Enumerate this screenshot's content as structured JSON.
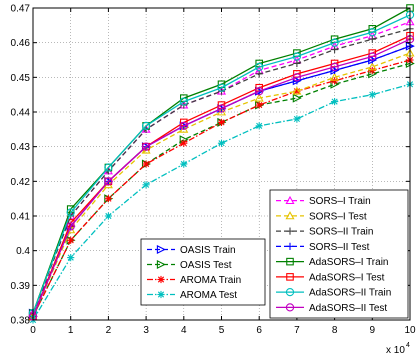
{
  "chart_data": {
    "type": "line",
    "title": "",
    "xlabel": "",
    "ylabel": "",
    "x_multiplier_label": "x 10",
    "x_multiplier_exp": "4",
    "x": [
      0,
      1,
      2,
      3,
      4,
      5,
      6,
      7,
      8,
      9,
      10
    ],
    "xticks": [
      "0",
      "1",
      "2",
      "3",
      "4",
      "5",
      "6",
      "7",
      "8",
      "9",
      "10"
    ],
    "xlim": [
      0,
      10
    ],
    "ylim": [
      0.38,
      0.47
    ],
    "yticks": [
      "0.38",
      "0.39",
      "0.4",
      "0.41",
      "0.42",
      "0.43",
      "0.44",
      "0.45",
      "0.46",
      "0.47"
    ],
    "grid": true,
    "series": [
      {
        "name": "OASIS Train",
        "color": "#0000ff",
        "dash": "dashed",
        "marker": "triangle-right",
        "values": [
          0.382,
          0.407,
          0.42,
          0.43,
          0.436,
          0.441,
          0.446,
          0.449,
          0.452,
          0.455,
          0.459
        ]
      },
      {
        "name": "OASIS Test",
        "color": "#008000",
        "dash": "dashed",
        "marker": "triangle-right",
        "values": [
          0.381,
          0.403,
          0.415,
          0.425,
          0.432,
          0.437,
          0.442,
          0.444,
          0.448,
          0.451,
          0.454
        ]
      },
      {
        "name": "AROMA Train",
        "color": "#ff0000",
        "dash": "dashdot",
        "marker": "asterisk",
        "values": [
          0.381,
          0.403,
          0.415,
          0.425,
          0.431,
          0.437,
          0.442,
          0.446,
          0.449,
          0.452,
          0.455
        ]
      },
      {
        "name": "AROMA Test",
        "color": "#00bfbf",
        "dash": "dashdot",
        "marker": "asterisk",
        "values": [
          0.38,
          0.398,
          0.41,
          0.419,
          0.425,
          0.431,
          0.436,
          0.438,
          0.443,
          0.445,
          0.448
        ]
      },
      {
        "name": "SORS–I Train",
        "color": "#ff00ff",
        "dash": "dashed",
        "marker": "triangle-up",
        "values": [
          0.382,
          0.41,
          0.423,
          0.435,
          0.442,
          0.446,
          0.452,
          0.455,
          0.459,
          0.462,
          0.466
        ]
      },
      {
        "name": "SORS–I Test",
        "color": "#e6c300",
        "dash": "dashed",
        "marker": "triangle-up",
        "values": [
          0.381,
          0.406,
          0.419,
          0.429,
          0.435,
          0.44,
          0.444,
          0.446,
          0.45,
          0.453,
          0.457
        ]
      },
      {
        "name": "SORS–II Train",
        "color": "#404040",
        "dash": "dashed",
        "marker": "plus",
        "values": [
          0.382,
          0.41,
          0.423,
          0.435,
          0.442,
          0.446,
          0.451,
          0.454,
          0.458,
          0.461,
          0.464
        ]
      },
      {
        "name": "SORS–II Test",
        "color": "#0000ff",
        "dash": "dashed",
        "marker": "plus",
        "values": [
          0.381,
          0.407,
          0.42,
          0.43,
          0.436,
          0.441,
          0.446,
          0.449,
          0.452,
          0.455,
          0.459
        ]
      },
      {
        "name": "AdaSORS–I Train",
        "color": "#008000",
        "dash": "solid",
        "marker": "square",
        "values": [
          0.382,
          0.412,
          0.424,
          0.436,
          0.444,
          0.448,
          0.454,
          0.457,
          0.461,
          0.464,
          0.47
        ]
      },
      {
        "name": "AdaSORS–I Test",
        "color": "#ff0000",
        "dash": "solid",
        "marker": "square",
        "values": [
          0.381,
          0.408,
          0.42,
          0.43,
          0.437,
          0.442,
          0.447,
          0.451,
          0.454,
          0.457,
          0.462
        ]
      },
      {
        "name": "AdaSORS–II Train",
        "color": "#00bfbf",
        "dash": "solid",
        "marker": "circle",
        "values": [
          0.382,
          0.411,
          0.424,
          0.436,
          0.443,
          0.447,
          0.453,
          0.456,
          0.46,
          0.463,
          0.468
        ]
      },
      {
        "name": "AdaSORS–II Test",
        "color": "#c000c0",
        "dash": "solid",
        "marker": "circle",
        "values": [
          0.381,
          0.407,
          0.42,
          0.43,
          0.436,
          0.441,
          0.446,
          0.45,
          0.453,
          0.456,
          0.461
        ]
      }
    ],
    "legend": [
      {
        "placement": "bottom-center",
        "series": [
          0,
          1,
          2,
          3
        ]
      },
      {
        "placement": "bottom-right",
        "series": [
          4,
          5,
          6,
          7,
          8,
          9,
          10,
          11
        ]
      }
    ]
  }
}
